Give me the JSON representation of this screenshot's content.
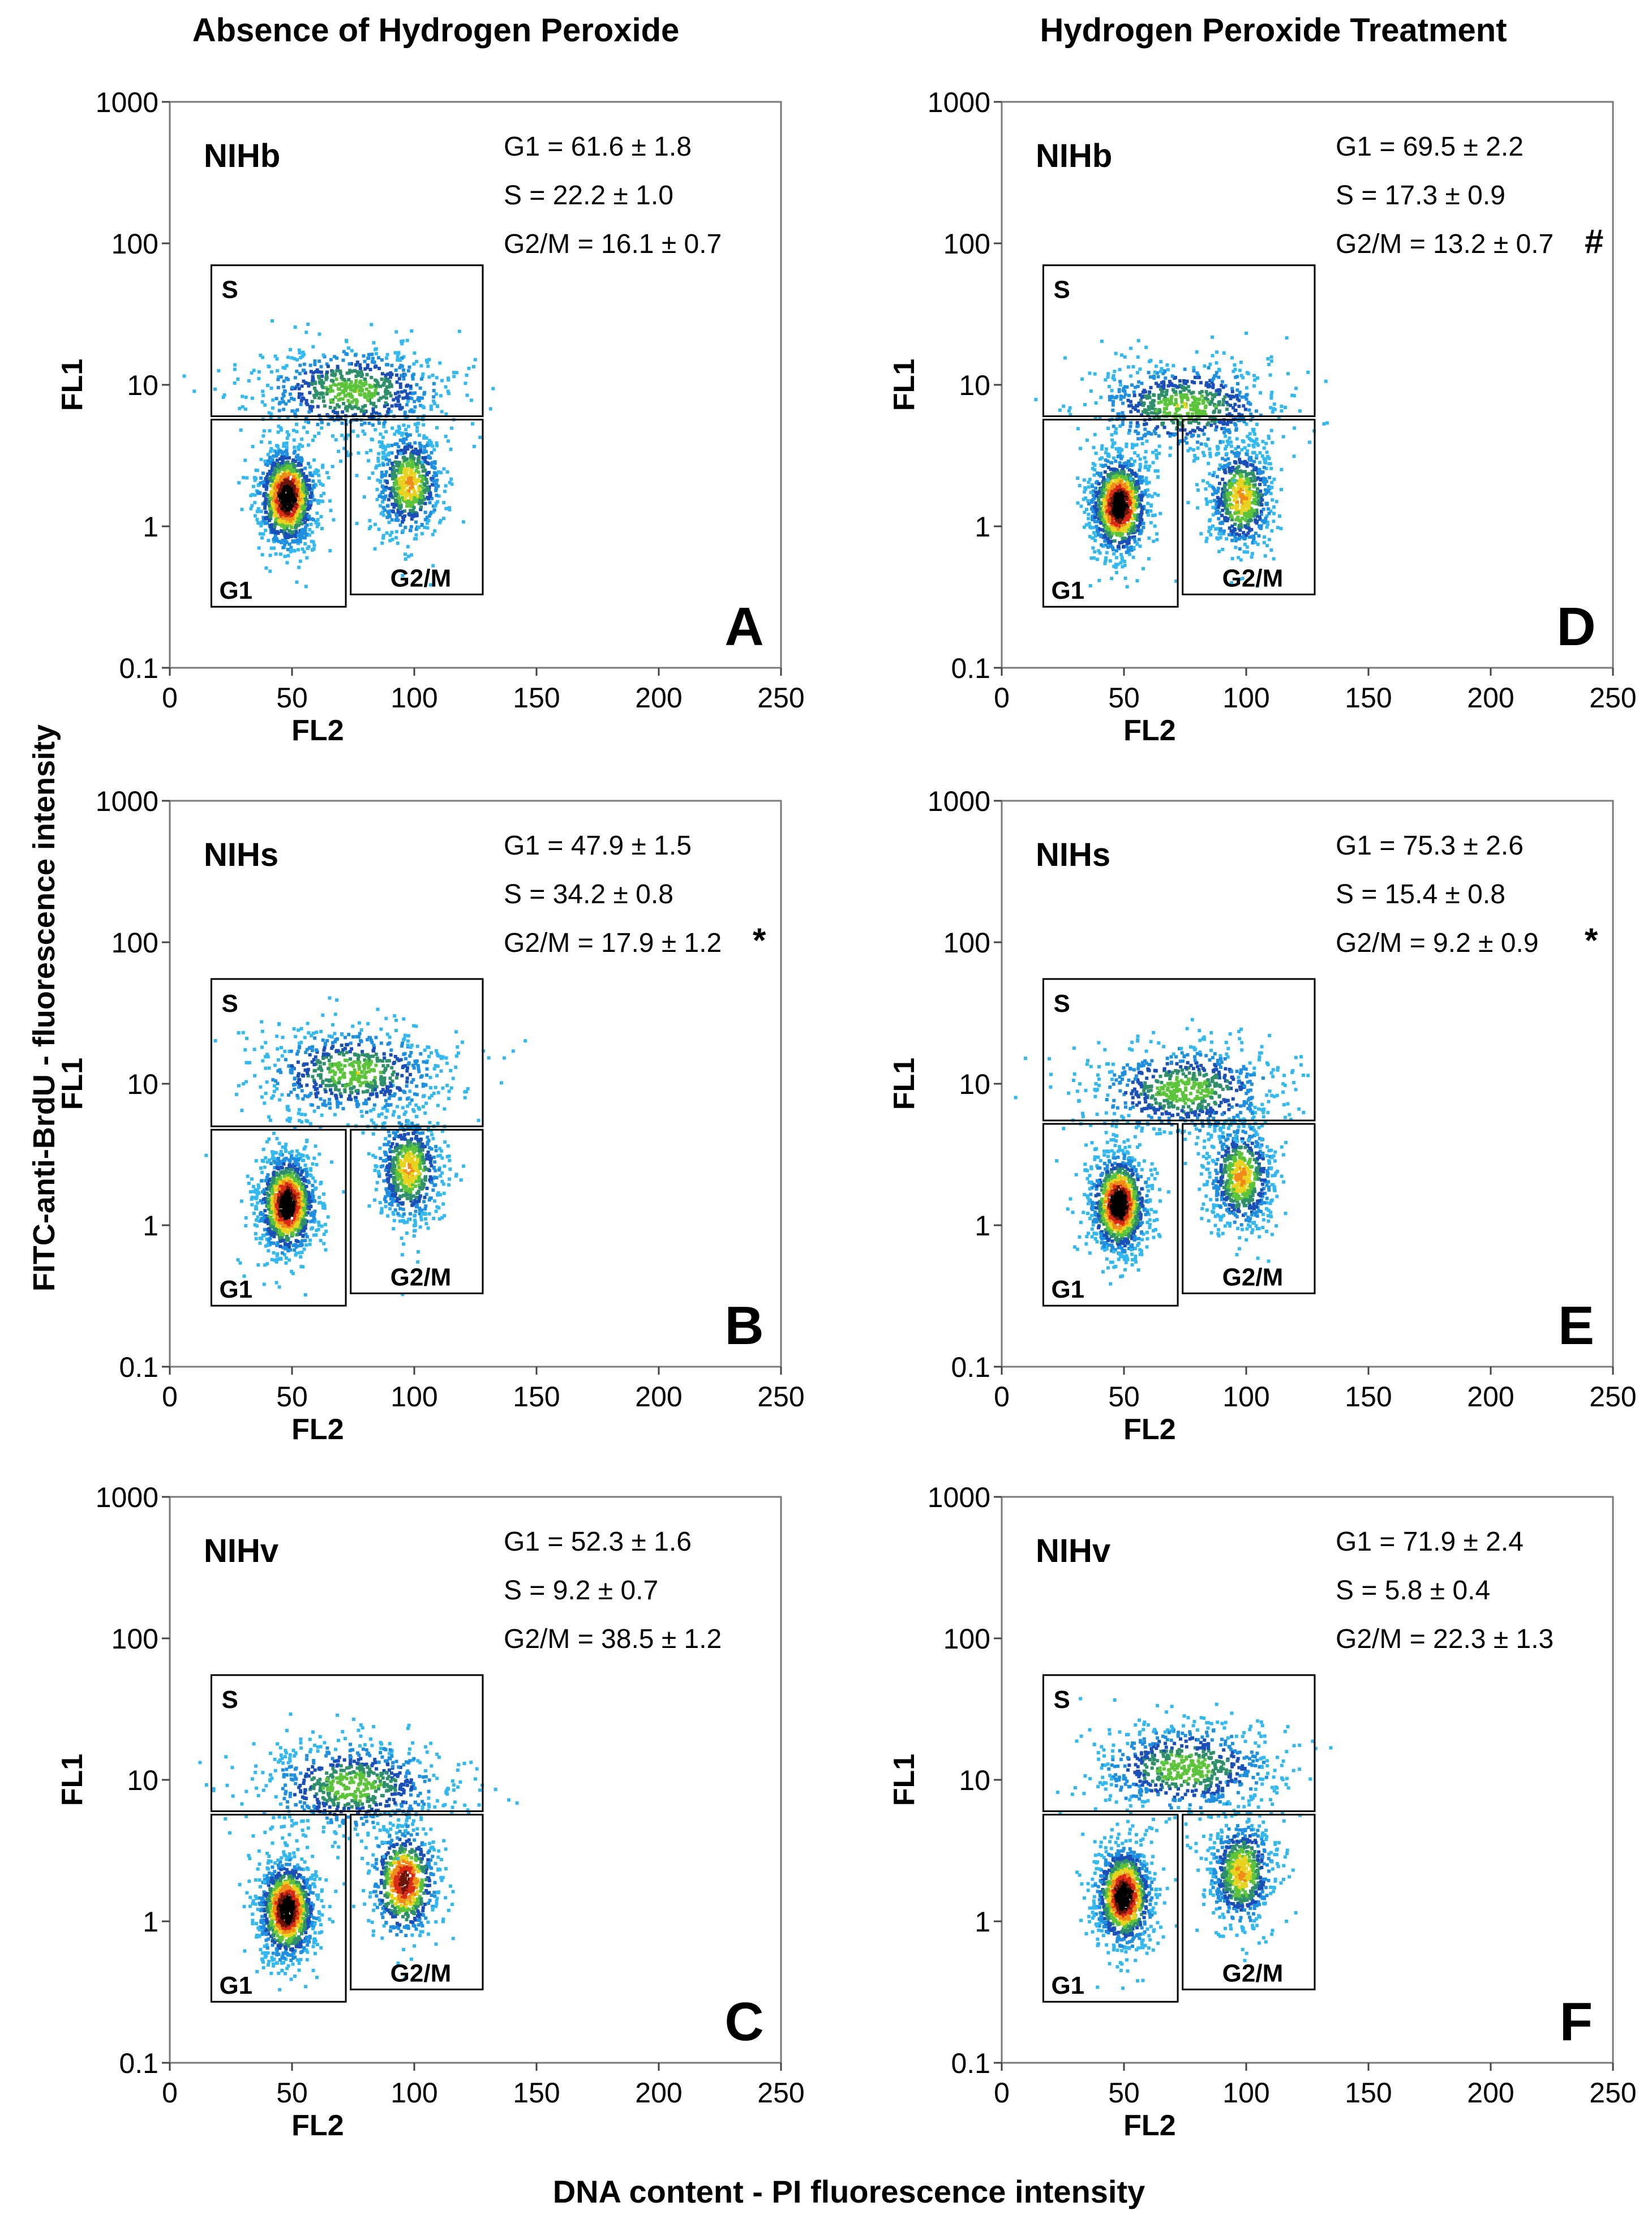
{
  "figure": {
    "col_titles": [
      "Absence of Hydrogen Peroxide",
      "Hydrogen Peroxide Treatment"
    ],
    "y_common_label": "FITC-anti-BrdU - fluorescence intensity",
    "x_common_label": "DNA content - PI fluorescence intensity"
  },
  "chart_data": [
    {
      "type": "scatter",
      "panel_letter": "A",
      "sample": "NIHb",
      "xlabel": "FL2",
      "ylabel": "FL1",
      "xlim": [
        0,
        250
      ],
      "ylim": [
        0.1,
        1000
      ],
      "yscale": "log",
      "xticks": [
        "0",
        "50",
        "100",
        "150",
        "200",
        "250"
      ],
      "yticks": [
        "0.1",
        "1",
        "10",
        "100",
        "1000"
      ],
      "gates": [
        "S",
        "G1",
        "G2/M"
      ],
      "stats": [
        "G1    = 61.6 ± 1.8",
        "S       = 22.2 ± 1.0",
        "G2/M = 16.1 ± 0.7"
      ],
      "marker": "",
      "populations": [
        {
          "gate": "G1",
          "x": 48,
          "fl1": 1.6
        },
        {
          "gate": "G2/M",
          "x": 98,
          "fl1": 2.0
        },
        {
          "gate": "S",
          "x": 75,
          "fl1": 9
        }
      ]
    },
    {
      "type": "scatter",
      "panel_letter": "B",
      "sample": "NIHs",
      "xlabel": "FL2",
      "ylabel": "FL1",
      "xlim": [
        0,
        250
      ],
      "ylim": [
        0.1,
        1000
      ],
      "yscale": "log",
      "xticks": [
        "0",
        "50",
        "100",
        "150",
        "200",
        "250"
      ],
      "yticks": [
        "0.1",
        "1",
        "10",
        "100",
        "1000"
      ],
      "gates": [
        "S",
        "G1",
        "G2/M"
      ],
      "stats": [
        "G1    = 47.9 ± 1.5",
        "S       = 34.2 ± 0.8",
        "G2/M = 17.9 ± 1.2"
      ],
      "marker": "*",
      "populations": [
        {
          "gate": "G1",
          "x": 48,
          "fl1": 1.4
        },
        {
          "gate": "G2/M",
          "x": 98,
          "fl1": 2.5
        },
        {
          "gate": "S",
          "x": 75,
          "fl1": 12
        }
      ]
    },
    {
      "type": "scatter",
      "panel_letter": "C",
      "sample": "NIHv",
      "xlabel": "FL2",
      "ylabel": "FL1",
      "xlim": [
        0,
        250
      ],
      "ylim": [
        0.1,
        1000
      ],
      "yscale": "log",
      "xticks": [
        "0",
        "50",
        "100",
        "150",
        "200",
        "250"
      ],
      "yticks": [
        "0.1",
        "1",
        "10",
        "100",
        "1000"
      ],
      "gates": [
        "S",
        "G1",
        "G2/M"
      ],
      "stats": [
        "G1    = 52.3 ± 1.6",
        "S       =   9.2 ± 0.7",
        "G2/M = 38.5 ± 1.2"
      ],
      "marker": "",
      "populations": [
        {
          "gate": "G1",
          "x": 48,
          "fl1": 1.2
        },
        {
          "gate": "G2/M",
          "x": 96,
          "fl1": 1.9
        },
        {
          "gate": "S",
          "x": 75,
          "fl1": 9
        }
      ]
    },
    {
      "type": "scatter",
      "panel_letter": "D",
      "sample": "NIHb",
      "xlabel": "FL2",
      "ylabel": "FL1",
      "xlim": [
        0,
        250
      ],
      "ylim": [
        0.1,
        1000
      ],
      "yscale": "log",
      "xticks": [
        "0",
        "50",
        "100",
        "150",
        "200",
        "250"
      ],
      "yticks": [
        "0.1",
        "1",
        "10",
        "100",
        "1000"
      ],
      "gates": [
        "S",
        "G1",
        "G2/M"
      ],
      "stats": [
        "G1    = 69.5 ± 2.2",
        "S       = 17.3 ± 0.9",
        "G2/M = 13.2 ± 0.7"
      ],
      "marker": "#",
      "populations": [
        {
          "gate": "G1",
          "x": 48,
          "fl1": 1.4
        },
        {
          "gate": "G2/M",
          "x": 98,
          "fl1": 1.6
        },
        {
          "gate": "S",
          "x": 75,
          "fl1": 7
        }
      ]
    },
    {
      "type": "scatter",
      "panel_letter": "E",
      "sample": "NIHs",
      "xlabel": "FL2",
      "ylabel": "FL1",
      "xlim": [
        0,
        250
      ],
      "ylim": [
        0.1,
        1000
      ],
      "yscale": "log",
      "xticks": [
        "0",
        "50",
        "100",
        "150",
        "200",
        "250"
      ],
      "yticks": [
        "0.1",
        "1",
        "10",
        "100",
        "1000"
      ],
      "gates": [
        "S",
        "G1",
        "G2/M"
      ],
      "stats": [
        "G1    = 75.3 ± 2.6",
        "S       = 15.4 ± 0.8",
        "G2/M =   9.2 ± 0.9"
      ],
      "marker": "*",
      "populations": [
        {
          "gate": "G1",
          "x": 48,
          "fl1": 1.4
        },
        {
          "gate": "G2/M",
          "x": 98,
          "fl1": 2.2
        },
        {
          "gate": "S",
          "x": 75,
          "fl1": 9
        }
      ]
    },
    {
      "type": "scatter",
      "panel_letter": "F",
      "sample": "NIHv",
      "xlabel": "FL2",
      "ylabel": "FL1",
      "xlim": [
        0,
        250
      ],
      "ylim": [
        0.1,
        1000
      ],
      "yscale": "log",
      "xticks": [
        "0",
        "50",
        "100",
        "150",
        "200",
        "250"
      ],
      "yticks": [
        "0.1",
        "1",
        "10",
        "100",
        "1000"
      ],
      "gates": [
        "S",
        "G1",
        "G2/M"
      ],
      "stats": [
        "G1    = 71.9 ± 2.4",
        "S       =   5.8 ± 0.4",
        "G2/M = 22.3 ± 1.3"
      ],
      "marker": "",
      "populations": [
        {
          "gate": "G1",
          "x": 50,
          "fl1": 1.5
        },
        {
          "gate": "G2/M",
          "x": 98,
          "fl1": 2.2
        },
        {
          "gate": "S",
          "x": 75,
          "fl1": 12
        }
      ]
    }
  ]
}
